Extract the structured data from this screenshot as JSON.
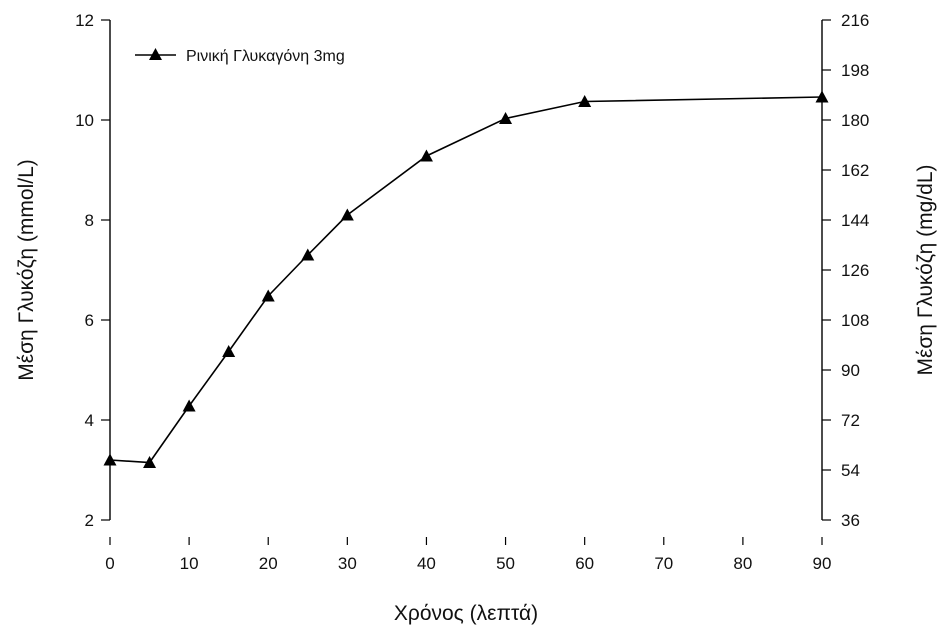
{
  "chart_data": {
    "type": "line",
    "title": "",
    "xlabel": "Χρόνος (λεπτά)",
    "ylabel": "Μέση Γλυκόζη (mmol/L)",
    "y2label": "Μέση Γλυκόζη (mg/dL)",
    "xlim": [
      0,
      90
    ],
    "ylim": [
      2,
      12
    ],
    "y2lim": [
      36,
      216
    ],
    "x_ticks": [
      "0",
      "10",
      "20",
      "30",
      "40",
      "50",
      "60",
      "70",
      "80",
      "90"
    ],
    "y_ticks": [
      "2",
      "4",
      "6",
      "8",
      "10",
      "12"
    ],
    "y2_ticks": [
      "36",
      "54",
      "72",
      "90",
      "108",
      "126",
      "144",
      "162",
      "180",
      "198",
      "216"
    ],
    "grid": false,
    "legend_position": "top-left",
    "series": [
      {
        "name": "Ρινική Γλυκαγόνη 3mg",
        "color": "#000000",
        "marker": "triangle",
        "x": [
          0,
          5,
          10,
          15,
          20,
          25,
          30,
          40,
          50,
          60,
          90
        ],
        "y": [
          3.2,
          3.15,
          4.28,
          5.37,
          6.48,
          7.3,
          8.1,
          9.28,
          10.03,
          10.37,
          10.46
        ]
      }
    ]
  }
}
